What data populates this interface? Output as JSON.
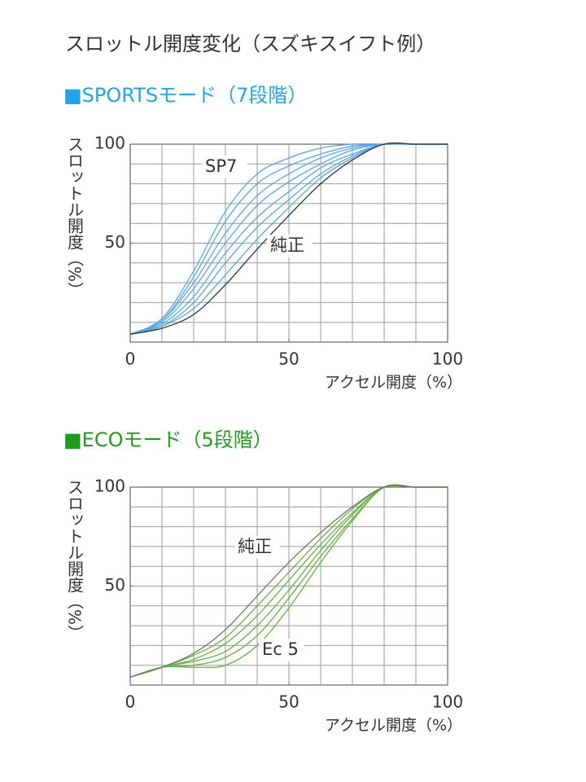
{
  "title": "スロットル開度変化（スズキスイフト例）",
  "chart_data": [
    {
      "type": "line",
      "title": "■SPORTSモード（7段階）",
      "title_color": "#22a3ea",
      "x_label": "アクセル開度（%）",
      "y_label": "スロットル開度（%）",
      "annotations": [
        "SP7",
        "純正"
      ],
      "x": [
        0,
        10,
        20,
        30,
        40,
        50,
        60,
        70,
        80,
        90,
        100
      ],
      "xlim": [
        0,
        100
      ],
      "ylim": [
        0,
        100
      ],
      "xticks": [
        0,
        50,
        100
      ],
      "yticks": [
        50,
        100
      ],
      "xgrid": [
        10,
        20,
        30,
        40,
        50,
        60,
        70,
        80,
        90
      ],
      "ygrid": [
        10,
        20,
        30,
        40,
        50,
        60,
        70,
        80,
        90
      ],
      "series": [
        {
          "color": "#5aa5e3",
          "values": [
            4,
            8,
            17,
            34,
            52,
            68,
            83,
            93,
            100,
            100,
            100
          ]
        },
        {
          "color": "#5aa5e3",
          "values": [
            4,
            8,
            20,
            40,
            58,
            72,
            85,
            94,
            100,
            100,
            100
          ]
        },
        {
          "color": "#5aa5e3",
          "values": [
            4,
            9,
            23,
            45,
            63,
            76,
            88,
            95,
            100,
            100,
            100
          ]
        },
        {
          "color": "#5aa5e3",
          "values": [
            4,
            10,
            27,
            50,
            69,
            81,
            90,
            97,
            100,
            100,
            100
          ]
        },
        {
          "color": "#5aa5e3",
          "values": [
            4,
            11,
            30,
            55,
            74,
            85,
            93,
            98,
            100,
            100,
            100
          ]
        },
        {
          "color": "#5aa5e3",
          "values": [
            4,
            11,
            33,
            61,
            80,
            89,
            95,
            99,
            100,
            100,
            100
          ]
        },
        {
          "color": "#5aa5e3",
          "values": [
            4,
            12,
            36,
            66,
            85,
            93,
            98,
            100,
            100,
            100,
            100
          ]
        },
        {
          "color": "#333333",
          "values": [
            4,
            7,
            14,
            29,
            47,
            64,
            80,
            92,
            100,
            100,
            100
          ]
        }
      ]
    },
    {
      "type": "line",
      "title": "■ECOモード（5段階）",
      "title_color": "#1e9b1e",
      "x_label": "アクセル開度（%）",
      "y_label": "スロットル開度（%）",
      "annotations": [
        "純正",
        "Ec 5"
      ],
      "x": [
        0,
        10,
        20,
        30,
        40,
        50,
        60,
        70,
        80,
        90,
        100
      ],
      "xlim": [
        0,
        100
      ],
      "ylim": [
        0,
        100
      ],
      "xticks": [
        0,
        50,
        100
      ],
      "yticks": [
        50,
        100
      ],
      "xgrid": [
        10,
        20,
        30,
        40,
        50,
        60,
        70,
        80,
        90
      ],
      "ygrid": [
        10,
        20,
        30,
        40,
        50,
        60,
        70,
        80,
        90
      ],
      "series": [
        {
          "color": "#66b046",
          "values": [
            4,
            9,
            15,
            24,
            40,
            57,
            74,
            89,
            100,
            100,
            100
          ]
        },
        {
          "color": "#66b046",
          "values": [
            4,
            9,
            13,
            21,
            35,
            53,
            71,
            87,
            100,
            100,
            100
          ]
        },
        {
          "color": "#66b046",
          "values": [
            4,
            9,
            12,
            17,
            30,
            48,
            68,
            86,
            100,
            100,
            100
          ]
        },
        {
          "color": "#66b046",
          "values": [
            4,
            9,
            10,
            14,
            25,
            44,
            65,
            84,
            100,
            100,
            100
          ]
        },
        {
          "color": "#66b046",
          "values": [
            4,
            9,
            9,
            10,
            20,
            39,
            62,
            83,
            100,
            100,
            100
          ]
        },
        {
          "color": "#707070",
          "values": [
            4,
            9,
            16,
            28,
            45,
            62,
            77,
            90,
            100,
            100,
            100
          ]
        }
      ]
    }
  ]
}
